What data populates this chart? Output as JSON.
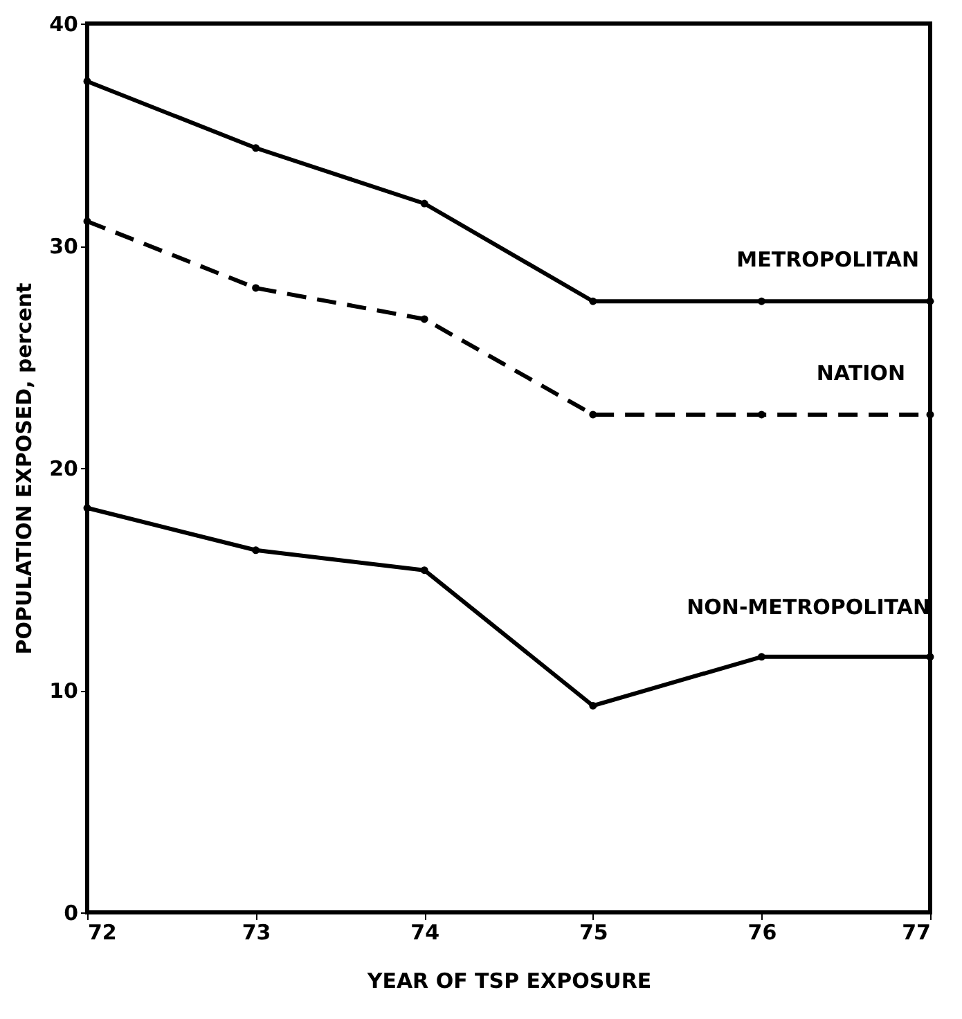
{
  "chart_data": {
    "type": "line",
    "xlabel": "YEAR OF TSP EXPOSURE",
    "ylabel": "POPULATION EXPOSED, percent",
    "x": [
      72,
      73,
      74,
      75,
      76,
      77
    ],
    "series": [
      {
        "name": "METROPOLITAN",
        "color": "#000000",
        "line_style": "solid",
        "values": [
          37.4,
          34.4,
          31.9,
          27.5,
          27.5,
          27.5
        ]
      },
      {
        "name": "NATION",
        "color": "#000000",
        "line_style": "dashed",
        "values": [
          31.1,
          28.1,
          26.7,
          22.4,
          22.4,
          22.4
        ]
      },
      {
        "name": "NON-METROPOLITAN",
        "color": "#000000",
        "line_style": "solid",
        "values": [
          18.2,
          16.3,
          15.4,
          9.3,
          11.5,
          11.5
        ]
      }
    ],
    "xlim": [
      72,
      77
    ],
    "xticks": [
      72,
      73,
      74,
      75,
      76,
      77
    ],
    "ylim": [
      0,
      40
    ],
    "yticks": [
      0,
      10,
      20,
      30,
      40
    ],
    "marker": "circle",
    "grid": false
  }
}
